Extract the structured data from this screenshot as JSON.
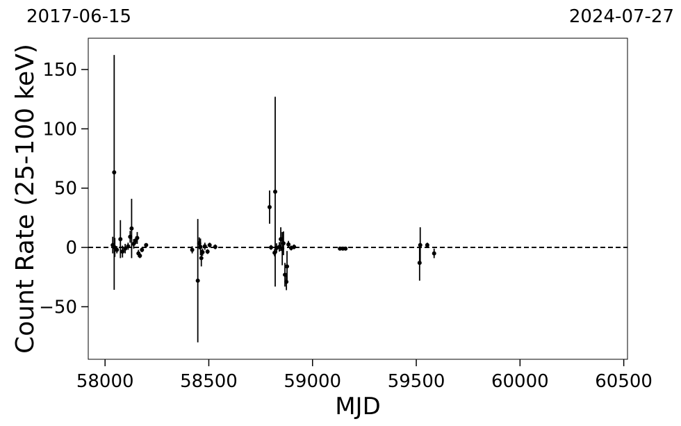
{
  "chart_data": {
    "type": "errorbar",
    "top_labels": [
      "2017-06-15",
      "2024-07-27"
    ],
    "xlabel": "MJD",
    "ylabel": "Count Rate (25-100 keV)",
    "color": "#000000",
    "hline": 0,
    "xlim": [
      57919,
      60518
    ],
    "ylim": [
      -94.3,
      176.4
    ],
    "xticks": [
      58000,
      58500,
      59000,
      59500,
      60000,
      60500
    ],
    "yticks": [
      {
        "value": -50,
        "label": "−50"
      },
      0,
      50,
      100,
      150
    ],
    "x": [
      58044,
      58037,
      58047,
      58057,
      58074,
      58084,
      58097,
      58111,
      58121,
      58128,
      58138,
      58148,
      58155,
      58161,
      58168,
      58178,
      58198,
      58420,
      58447,
      58454,
      58460,
      58464,
      58470,
      58481,
      58494,
      58504,
      58531,
      58793,
      58800,
      58817,
      58820,
      58827,
      58840,
      58847,
      58854,
      58860,
      58867,
      58874,
      58877,
      58884,
      58897,
      58911,
      59132,
      59146,
      59159,
      59516,
      59519,
      59553,
      59586
    ],
    "values": [
      63.3,
      2,
      0,
      -2,
      7,
      -3.5,
      -1,
      1,
      9,
      16,
      3,
      6,
      8,
      -5,
      -7,
      -2,
      2,
      -2,
      -28,
      3.5,
      0.5,
      -9,
      -4,
      1,
      -3.5,
      2,
      0.5,
      34,
      0,
      -4.5,
      47,
      -0.5,
      0.5,
      7,
      -1,
      3.5,
      -23,
      -29,
      -16,
      2.5,
      -0.5,
      0.5,
      -1,
      -1,
      -1,
      -13,
      2,
      2,
      -5
    ],
    "errors": [
      99,
      7,
      8,
      3,
      16,
      5,
      4,
      3,
      5,
      25,
      4,
      3,
      5,
      3,
      2,
      2,
      1,
      3,
      52,
      5,
      7,
      7,
      3,
      3,
      2,
      2,
      2,
      14,
      2,
      3,
      80,
      4,
      4,
      10,
      14,
      10,
      10,
      7,
      13,
      3,
      2,
      2,
      1,
      1,
      1,
      15,
      15,
      2,
      4
    ]
  }
}
